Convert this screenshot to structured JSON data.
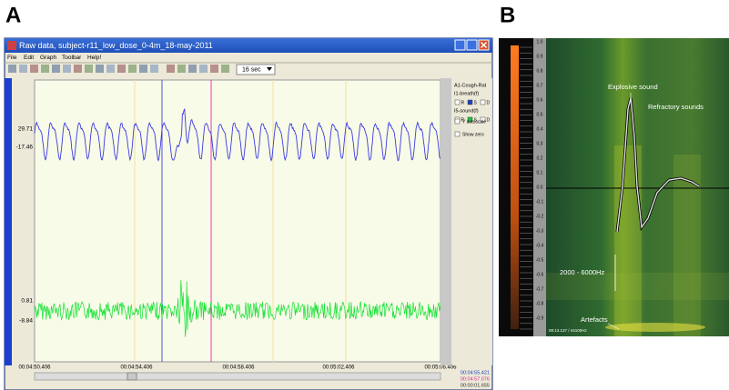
{
  "panel_a": {
    "label": "A",
    "window_title": "Raw data, subject-r11_low_dose_0-4m_18-may-2011",
    "menu": [
      "File",
      "Edit",
      "Graph",
      "Toolbar",
      "Help!"
    ],
    "timespan": "16 sec",
    "channel1_labels": [
      "29.71",
      "-17.46"
    ],
    "channel2_labels": [
      "0.81",
      "-8.84"
    ],
    "time_labels": [
      "00:04:50.406",
      "00:04:54.406",
      "00:04:58.406",
      "00:05:02.406",
      "00:05:06.406"
    ],
    "side_panel": {
      "channel": "A1-Cough-Rat",
      "breath": "I1-breath(f)",
      "sound": "I5-sound(f)",
      "checks": [
        "R",
        "S",
        "D"
      ],
      "autoscale": "Y autoscale",
      "show_zero": "Show zero"
    },
    "cursor_times": [
      "00:04:55.421",
      "00:04:57.076",
      "00:00:01.655"
    ]
  },
  "panel_b": {
    "label": "B",
    "annotations": {
      "explosive": "Explosive sound",
      "refractory": "Refractory sounds",
      "band": "2000 - 6000Hz",
      "artefacts": "Artefacts"
    },
    "scale": [
      "1.0",
      "0.9",
      "0.8",
      "0.7",
      "0.6",
      "0.5",
      "0.4",
      "0.3",
      "0.2",
      "0.1",
      "0.0",
      "-0.1",
      "-0.2",
      "-0.3",
      "-0.4",
      "-0.5",
      "-0.6",
      "-0.7",
      "-0.8",
      "-0.9"
    ],
    "status": "08:13.137 / 44100Hz"
  }
}
